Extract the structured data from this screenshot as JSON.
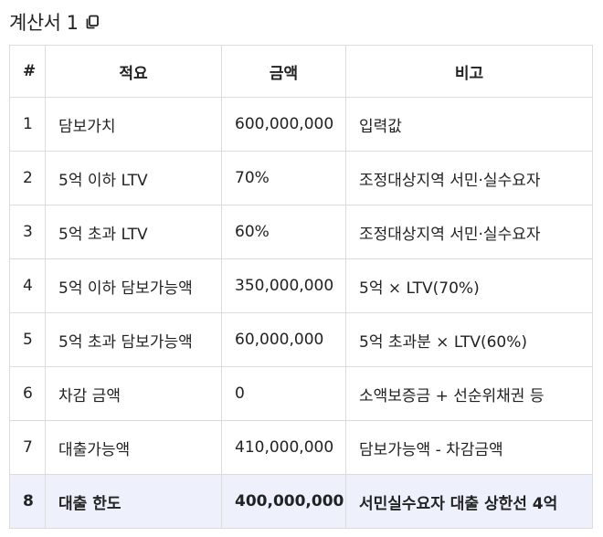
{
  "header": {
    "title": "계산서 1",
    "copy_icon": "copy-icon"
  },
  "table": {
    "columns": [
      "#",
      "적요",
      "금액",
      "비고"
    ],
    "rows": [
      {
        "no": "1",
        "desc": "담보가치",
        "amount": "600,000,000",
        "note": "입력값"
      },
      {
        "no": "2",
        "desc": "5억 이하 LTV",
        "amount": "70%",
        "note": "조정대상지역 서민·실수요자"
      },
      {
        "no": "3",
        "desc": "5억 초과 LTV",
        "amount": "60%",
        "note": "조정대상지역 서민·실수요자"
      },
      {
        "no": "4",
        "desc": "5억 이하 담보가능액",
        "amount": "350,000,000",
        "note": "5억 × LTV(70%)"
      },
      {
        "no": "5",
        "desc": "5억 초과 담보가능액",
        "amount": "60,000,000",
        "note": "5억 초과분 × LTV(60%)"
      },
      {
        "no": "6",
        "desc": "차감 금액",
        "amount": "0",
        "note": "소액보증금 + 선순위채권 등"
      },
      {
        "no": "7",
        "desc": "대출가능액",
        "amount": "410,000,000",
        "note": "담보가능액 - 차감금액"
      },
      {
        "no": "8",
        "desc": "대출 한도",
        "amount": "400,000,000",
        "note": "서민실수요자 대출 상한선 4억"
      }
    ],
    "highlight_color": "#eef1fc"
  }
}
